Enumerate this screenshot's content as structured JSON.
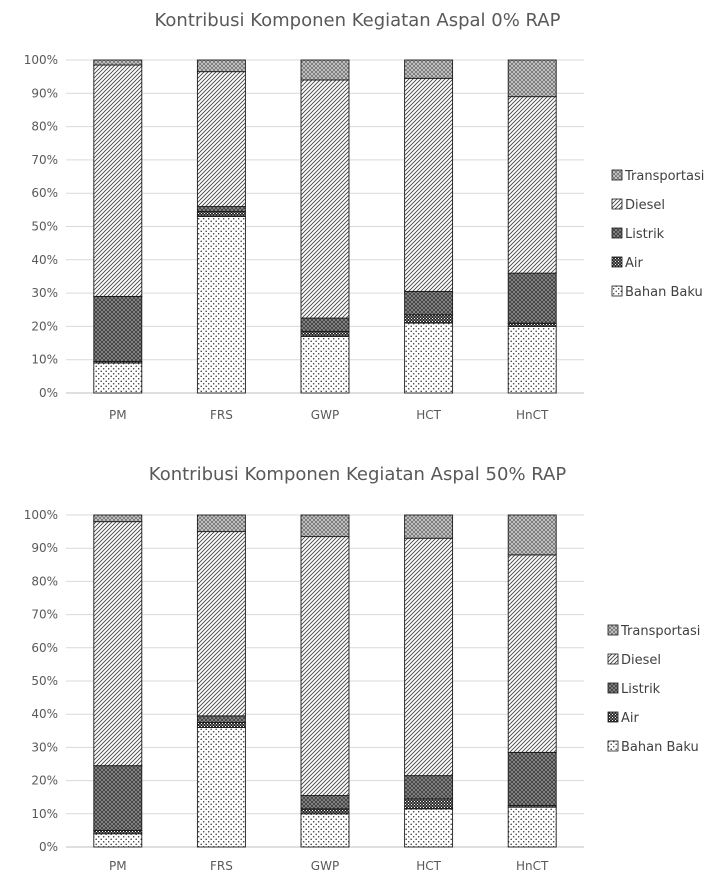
{
  "chart_data": [
    {
      "type": "bar",
      "stacked": true,
      "title": "Kontribusi Komponen Kegiatan Aspal 0% RAP",
      "categories": [
        "PM",
        "FRS",
        "GWP",
        "HCT",
        "HnCT"
      ],
      "y_ticks": [
        "0%",
        "10%",
        "20%",
        "30%",
        "40%",
        "50%",
        "60%",
        "70%",
        "80%",
        "90%",
        "100%"
      ],
      "ylim": [
        0,
        100
      ],
      "grid": true,
      "legend_position": "right",
      "series": [
        {
          "name": "Bahan Baku",
          "values": [
            9,
            53,
            17,
            21,
            20
          ]
        },
        {
          "name": "Air",
          "values": [
            0.5,
            1.5,
            1.5,
            2.5,
            1
          ]
        },
        {
          "name": "Listrik",
          "values": [
            19.5,
            1.5,
            4,
            7,
            15
          ]
        },
        {
          "name": "Diesel",
          "values": [
            69.5,
            40.5,
            71.5,
            64,
            53
          ]
        },
        {
          "name": "Transportasi",
          "values": [
            1.5,
            3.5,
            6,
            5.5,
            11
          ]
        }
      ]
    },
    {
      "type": "bar",
      "stacked": true,
      "title": "Kontribusi Komponen Kegiatan Aspal 50% RAP",
      "categories": [
        "PM",
        "FRS",
        "GWP",
        "HCT",
        "HnCT"
      ],
      "y_ticks": [
        "0%",
        "10%",
        "20%",
        "30%",
        "40%",
        "50%",
        "60%",
        "70%",
        "80%",
        "90%",
        "100%"
      ],
      "ylim": [
        0,
        100
      ],
      "grid": true,
      "legend_position": "right",
      "series": [
        {
          "name": "Bahan Baku",
          "values": [
            4,
            36,
            10,
            11.5,
            12
          ]
        },
        {
          "name": "Air",
          "values": [
            1,
            1.5,
            1.5,
            3,
            0.5
          ]
        },
        {
          "name": "Listrik",
          "values": [
            19.5,
            2,
            4,
            7,
            16
          ]
        },
        {
          "name": "Diesel",
          "values": [
            73.5,
            55.5,
            78,
            71.5,
            59.5
          ]
        },
        {
          "name": "Transportasi",
          "values": [
            2,
            5,
            6.5,
            7,
            12
          ]
        }
      ]
    }
  ]
}
